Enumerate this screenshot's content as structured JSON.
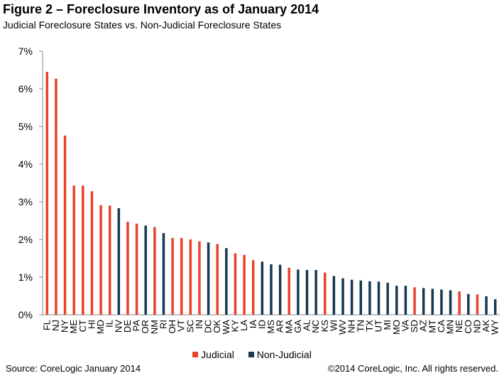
{
  "header": {
    "title": "Figure 2 – Foreclosure Inventory as of January 2014",
    "subtitle": "Judicial Foreclosure States vs. Non-Judicial Foreclosure States"
  },
  "footer": {
    "source": "Source: CoreLogic  January 2014",
    "copyright": "©2014 CoreLogic, Inc.  All rights reserved."
  },
  "colors": {
    "judicial": "#e8412c",
    "non_judicial": "#17384f",
    "axis": "#888888"
  },
  "chart_data": {
    "type": "bar",
    "title": "Figure 2 – Foreclosure Inventory as of January 2014",
    "subtitle": "Judicial Foreclosure States vs. Non-Judicial Foreclosure States",
    "xlabel": "",
    "ylabel": "",
    "ylim": [
      0,
      7
    ],
    "y_ticks": [
      "0%",
      "1%",
      "2%",
      "3%",
      "4%",
      "5%",
      "6%",
      "7%"
    ],
    "grid": false,
    "legend_position": "bottom",
    "legend": [
      "Judicial",
      "Non-Judicial"
    ],
    "categories": [
      "FL",
      "NJ",
      "NY",
      "ME",
      "CT",
      "HI",
      "MD",
      "IL",
      "NV",
      "DE",
      "PA",
      "OR",
      "NM",
      "RI",
      "OH",
      "VT",
      "SC",
      "IN",
      "DC",
      "OK",
      "WA",
      "KY",
      "LA",
      "IA",
      "ID",
      "MS",
      "AR",
      "MA",
      "GA",
      "AL",
      "NC",
      "KS",
      "WI",
      "WV",
      "NH",
      "TN",
      "TX",
      "UT",
      "MI",
      "MO",
      "VA",
      "SD",
      "AZ",
      "MT",
      "CA",
      "MN",
      "NE",
      "CO",
      "ND",
      "AK",
      "WY"
    ],
    "values": [
      6.45,
      6.27,
      4.76,
      3.43,
      3.43,
      3.28,
      2.91,
      2.9,
      2.83,
      2.47,
      2.42,
      2.37,
      2.33,
      2.17,
      2.04,
      2.04,
      2.0,
      1.95,
      1.92,
      1.88,
      1.77,
      1.63,
      1.59,
      1.45,
      1.41,
      1.34,
      1.33,
      1.25,
      1.2,
      1.19,
      1.19,
      1.12,
      1.03,
      0.97,
      0.93,
      0.91,
      0.89,
      0.88,
      0.85,
      0.77,
      0.77,
      0.73,
      0.71,
      0.69,
      0.67,
      0.65,
      0.62,
      0.55,
      0.54,
      0.49,
      0.41
    ],
    "types": [
      "Judicial",
      "Judicial",
      "Judicial",
      "Judicial",
      "Judicial",
      "Judicial",
      "Judicial",
      "Judicial",
      "Non-Judicial",
      "Judicial",
      "Judicial",
      "Non-Judicial",
      "Judicial",
      "Non-Judicial",
      "Judicial",
      "Judicial",
      "Judicial",
      "Judicial",
      "Non-Judicial",
      "Judicial",
      "Non-Judicial",
      "Judicial",
      "Judicial",
      "Judicial",
      "Non-Judicial",
      "Non-Judicial",
      "Non-Judicial",
      "Judicial",
      "Non-Judicial",
      "Non-Judicial",
      "Non-Judicial",
      "Judicial",
      "Non-Judicial",
      "Non-Judicial",
      "Non-Judicial",
      "Non-Judicial",
      "Non-Judicial",
      "Non-Judicial",
      "Non-Judicial",
      "Non-Judicial",
      "Non-Judicial",
      "Judicial",
      "Non-Judicial",
      "Non-Judicial",
      "Non-Judicial",
      "Non-Judicial",
      "Judicial",
      "Non-Judicial",
      "Judicial",
      "Non-Judicial",
      "Non-Judicial"
    ]
  }
}
